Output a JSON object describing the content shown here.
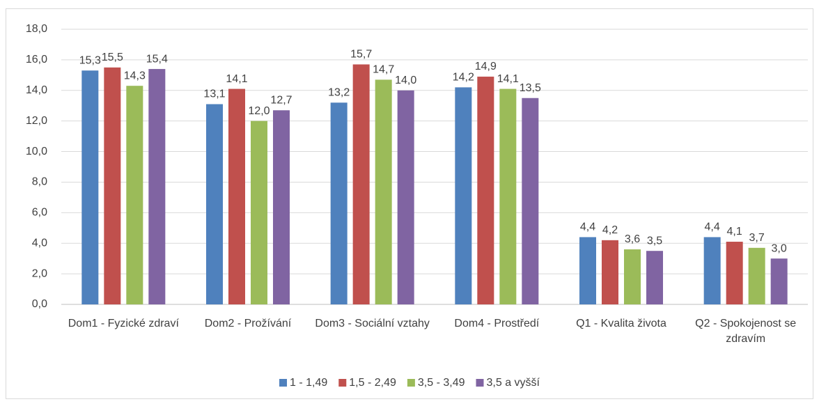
{
  "chart_data": {
    "type": "bar",
    "categories": [
      "Dom1 - Fyzické zdraví",
      "Dom2 - Prožívání",
      "Dom3 - Sociální vztahy",
      "Dom4 - Prostředí",
      "Q1 - Kvalita života",
      "Q2 - Spokojenost se zdravím"
    ],
    "series": [
      {
        "name": "1 - 1,49",
        "color": "#4f81bd",
        "values": [
          15.3,
          13.1,
          13.2,
          14.2,
          4.4,
          4.4
        ],
        "value_labels": [
          "15,3",
          "13,1",
          "13,2",
          "14,2",
          "4,4",
          "4,4"
        ]
      },
      {
        "name": "1,5 - 2,49",
        "color": "#c0504d",
        "values": [
          15.5,
          14.1,
          15.7,
          14.9,
          4.2,
          4.1
        ],
        "value_labels": [
          "15,5",
          "14,1",
          "15,7",
          "14,9",
          "4,2",
          "4,1"
        ]
      },
      {
        "name": "3,5 - 3,49",
        "color": "#9bbb59",
        "values": [
          14.3,
          12.0,
          14.7,
          14.1,
          3.6,
          3.7
        ],
        "value_labels": [
          "14,3",
          "12,0",
          "14,7",
          "14,1",
          "3,6",
          "3,7"
        ]
      },
      {
        "name": "3,5 a vyšší",
        "color": "#8064a2",
        "values": [
          15.4,
          12.7,
          14.0,
          13.5,
          3.5,
          3.0
        ],
        "value_labels": [
          "15,4",
          "12,7",
          "14,0",
          "13,5",
          "3,5",
          "3,0"
        ]
      }
    ],
    "ylim": [
      0,
      18
    ],
    "yticks": [
      {
        "value": 0,
        "label": "0,0"
      },
      {
        "value": 2,
        "label": "2,0"
      },
      {
        "value": 4,
        "label": "4,0"
      },
      {
        "value": 6,
        "label": "6,0"
      },
      {
        "value": 8,
        "label": "8,0"
      },
      {
        "value": 10,
        "label": "10,0"
      },
      {
        "value": 12,
        "label": "12,0"
      },
      {
        "value": 14,
        "label": "14,0"
      },
      {
        "value": 16,
        "label": "16,0"
      },
      {
        "value": 18,
        "label": "18,0"
      }
    ],
    "grid": true,
    "legend": "bottom"
  }
}
